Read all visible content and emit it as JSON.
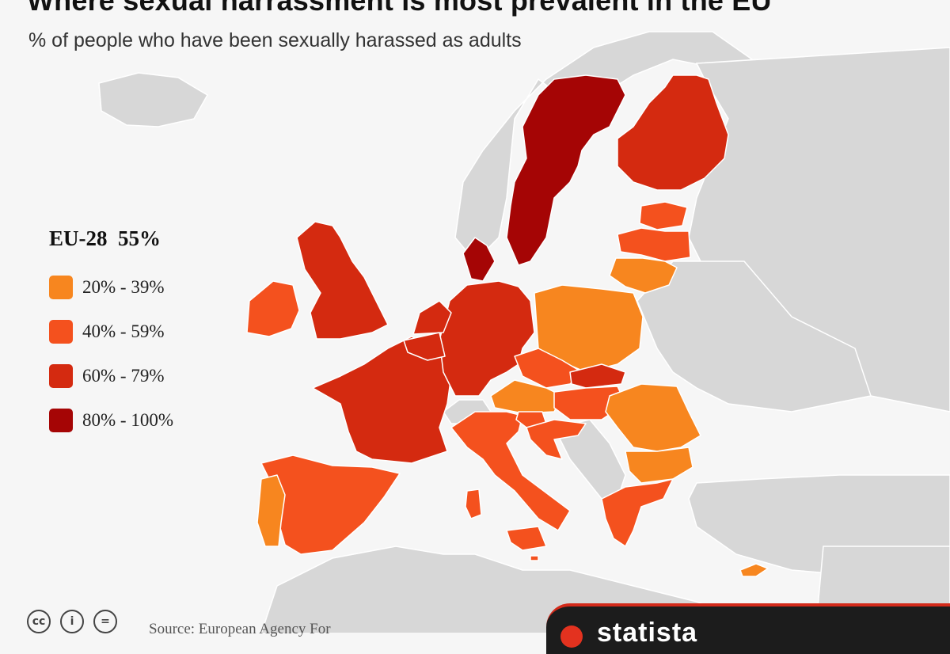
{
  "title": "Where sexual harrassment is most prevalent in the EU",
  "subtitle": "% of people who have been sexually harassed as adults",
  "legend": {
    "average": "EU-28  55%",
    "items": [
      {
        "label": "20% - 39%",
        "color": "#f7861f"
      },
      {
        "label": "40% - 59%",
        "color": "#f4511e"
      },
      {
        "label": "60% - 79%",
        "color": "#d42a10"
      },
      {
        "label": "80% - 100%",
        "color": "#a50505"
      }
    ]
  },
  "colors": {
    "background": "#f6f6f6",
    "non_eu_land": "#d7d7d7",
    "borders": "#ffffff"
  },
  "map_data": {
    "average": {
      "region": "EU-28",
      "value": 55
    },
    "bins": [
      "20% - 39%",
      "40% - 59%",
      "60% - 79%",
      "80% - 100%"
    ],
    "countries": {
      "Sweden": "80% - 100%",
      "Denmark": "80% - 100%",
      "Finland": "60% - 79%",
      "United Kingdom": "60% - 79%",
      "France": "60% - 79%",
      "Germany": "60% - 79%",
      "Netherlands": "60% - 79%",
      "Belgium": "60% - 79%",
      "Luxembourg": "60% - 79%",
      "Slovakia": "60% - 79%",
      "Ireland": "40% - 59%",
      "Spain": "40% - 59%",
      "Italy": "40% - 59%",
      "Estonia": "40% - 59%",
      "Latvia": "40% - 59%",
      "Czech Republic": "40% - 59%",
      "Hungary": "40% - 59%",
      "Croatia": "40% - 59%",
      "Slovenia": "40% - 59%",
      "Greece": "40% - 59%",
      "Malta": "40% - 59%",
      "Portugal": "20% - 39%",
      "Poland": "20% - 39%",
      "Lithuania": "20% - 39%",
      "Austria": "20% - 39%",
      "Romania": "20% - 39%",
      "Bulgaria": "20% - 39%",
      "Cyprus": "20% - 39%"
    }
  },
  "footer": {
    "source": "Source: European Agency For",
    "license_icons": [
      "cc-icon",
      "by-icon",
      "nd-icon"
    ],
    "cc": "cc",
    "by": "i",
    "nd": "=",
    "brand": "statista"
  }
}
